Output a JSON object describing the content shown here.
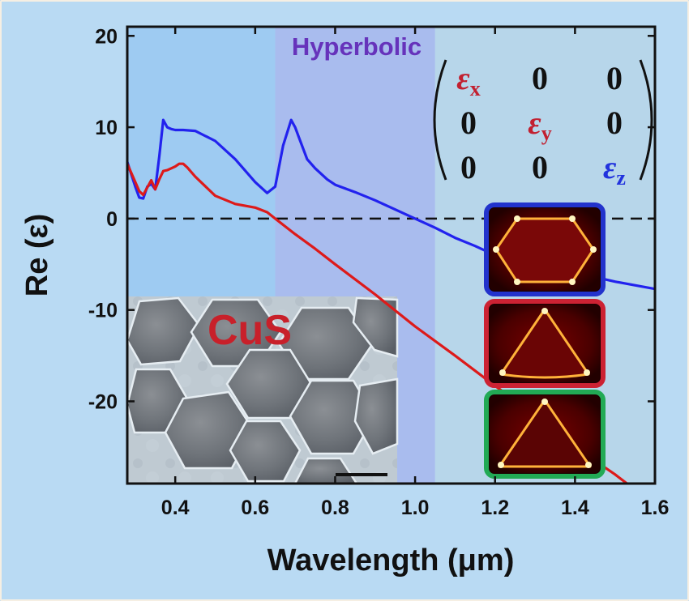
{
  "chart_data": {
    "type": "line",
    "xlabel": "Wavelength (μm)",
    "ylabel": "Re (ε)",
    "xlim": [
      0.28,
      1.6
    ],
    "ylim": [
      -29,
      21
    ],
    "x_ticks": [
      "0.4",
      "0.6",
      "0.8",
      "1.0",
      "1.2",
      "1.4",
      "1.6"
    ],
    "x_tick_values": [
      0.4,
      0.6,
      0.8,
      1.0,
      1.2,
      1.4,
      1.6
    ],
    "y_ticks": [
      "20",
      "10",
      "0",
      "-10",
      "-20"
    ],
    "y_tick_values": [
      20,
      10,
      0,
      -10,
      -20
    ],
    "reference_line": {
      "y": 0,
      "style": "dashed",
      "color": "#000000"
    },
    "regions": [
      {
        "x": [
          0.28,
          0.65
        ],
        "color": "#9ecbf2"
      },
      {
        "x": [
          0.65,
          1.05
        ],
        "color": "#a9bcee",
        "label": "Hyperbolic",
        "label_color": "#6633bb"
      },
      {
        "x": [
          1.05,
          1.6
        ],
        "color": "#b7d6ea"
      }
    ],
    "series": [
      {
        "color": "#2222ee",
        "x": [
          0.28,
          0.3,
          0.31,
          0.32,
          0.33,
          0.34,
          0.35,
          0.36,
          0.37,
          0.38,
          0.39,
          0.4,
          0.42,
          0.45,
          0.5,
          0.55,
          0.6,
          0.63,
          0.65,
          0.67,
          0.69,
          0.7,
          0.71,
          0.73,
          0.75,
          0.78,
          0.8,
          0.85,
          0.9,
          0.95,
          1.0,
          1.05,
          1.1,
          1.15,
          1.2,
          1.25,
          1.3,
          1.35,
          1.4,
          1.45,
          1.5,
          1.55,
          1.6
        ],
        "y": [
          6.2,
          3.5,
          2.3,
          2.2,
          3.5,
          3.8,
          3.2,
          6.8,
          10.8,
          10.0,
          9.8,
          9.7,
          9.7,
          9.6,
          8.5,
          6.5,
          4.0,
          2.8,
          3.5,
          8.0,
          10.8,
          10.0,
          8.8,
          6.5,
          5.5,
          4.3,
          3.7,
          2.9,
          2.0,
          1.0,
          0.0,
          -1.0,
          -2.1,
          -3.0,
          -4.0,
          -4.6,
          -5.0,
          -5.5,
          -6.0,
          -6.4,
          -6.9,
          -7.3,
          -7.7
        ]
      },
      {
        "color": "#dd1a1a",
        "x": [
          0.28,
          0.3,
          0.31,
          0.32,
          0.33,
          0.34,
          0.35,
          0.36,
          0.37,
          0.38,
          0.39,
          0.4,
          0.41,
          0.42,
          0.43,
          0.45,
          0.5,
          0.55,
          0.6,
          0.63,
          0.65,
          0.7,
          0.75,
          0.8,
          0.9,
          1.0,
          1.1,
          1.2,
          1.3,
          1.4,
          1.5,
          1.53
        ],
        "y": [
          6.0,
          4.0,
          3.0,
          2.6,
          3.4,
          4.2,
          3.2,
          4.3,
          5.2,
          5.3,
          5.5,
          5.7,
          6.0,
          6.0,
          5.6,
          4.6,
          2.5,
          1.6,
          1.2,
          0.7,
          0.0,
          -1.7,
          -3.3,
          -5.0,
          -8.3,
          -11.8,
          -15.0,
          -18.3,
          -21.5,
          -25.0,
          -28.0,
          -29.0
        ]
      }
    ],
    "annotations": [
      {
        "text": "CuS",
        "color": "#c8202a"
      }
    ],
    "tensor": {
      "rows": [
        [
          {
            "text": "ε",
            "sub": "x",
            "color": "#c22030"
          },
          {
            "text": "0",
            "color": "#111111"
          },
          {
            "text": "0",
            "color": "#111111"
          }
        ],
        [
          {
            "text": "0",
            "color": "#111111"
          },
          {
            "text": "ε",
            "sub": "y",
            "color": "#c22030"
          },
          {
            "text": "0",
            "color": "#111111"
          }
        ],
        [
          {
            "text": "0",
            "color": "#111111"
          },
          {
            "text": "0",
            "color": "#111111"
          },
          {
            "text": "ε",
            "sub": "z",
            "color": "#2233dd"
          }
        ]
      ]
    },
    "field_maps": [
      {
        "name": "blue-framed",
        "border_color": "#2233cc",
        "shape": "hexagon"
      },
      {
        "name": "red-framed",
        "border_color": "#cc2233",
        "shape": "rounded-triangle"
      },
      {
        "name": "green-framed",
        "border_color": "#22aa55",
        "shape": "triangle"
      }
    ],
    "grid": false
  }
}
